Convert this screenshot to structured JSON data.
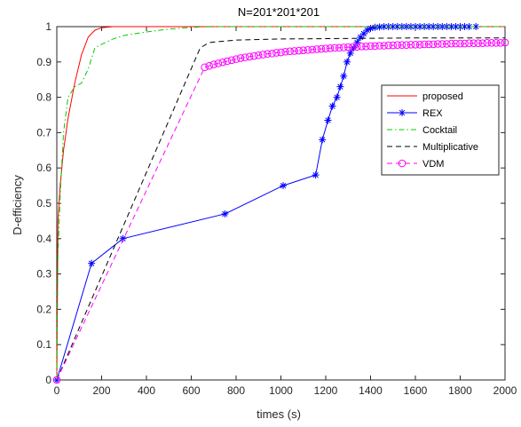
{
  "chart_data": {
    "type": "line",
    "title": "N=201*201*201",
    "xlabel": "times (s)",
    "ylabel": "D-efficiency",
    "xlim": [
      0,
      2000
    ],
    "ylim": [
      0,
      1
    ],
    "xticks": [
      0,
      200,
      400,
      600,
      800,
      1000,
      1200,
      1400,
      1600,
      1800,
      2000
    ],
    "yticks": [
      0,
      0.1,
      0.2,
      0.3,
      0.4,
      0.5,
      0.6,
      0.7,
      0.8,
      0.9,
      1
    ],
    "grid": false,
    "legend": "right",
    "series": [
      {
        "name": "proposed",
        "color": "#ff0000",
        "dash": "solid",
        "marker": "none",
        "x": [
          0,
          5,
          15,
          30,
          50,
          80,
          110,
          140,
          170,
          200,
          250,
          400,
          1000,
          2000
        ],
        "y": [
          0,
          0.45,
          0.55,
          0.65,
          0.74,
          0.84,
          0.92,
          0.97,
          0.99,
          0.997,
          1.0,
          1.0,
          1.0,
          1.0
        ]
      },
      {
        "name": "REX",
        "color": "#0000ff",
        "dash": "solid",
        "marker": "asterisk",
        "x": [
          0,
          155,
          295,
          750,
          1010,
          1155,
          1185,
          1210,
          1230,
          1250,
          1265,
          1280,
          1295,
          1310,
          1325,
          1340,
          1355,
          1370,
          1385,
          1400,
          1420,
          1440,
          1460,
          1480,
          1500,
          1520,
          1540,
          1560,
          1580,
          1600,
          1620,
          1640,
          1660,
          1680,
          1700,
          1720,
          1740,
          1760,
          1780,
          1800,
          1820,
          1840,
          1870
        ],
        "y": [
          0,
          0.33,
          0.4,
          0.47,
          0.55,
          0.58,
          0.68,
          0.735,
          0.775,
          0.8,
          0.83,
          0.86,
          0.9,
          0.925,
          0.94,
          0.955,
          0.97,
          0.98,
          0.99,
          0.995,
          0.998,
          0.999,
          1.0,
          1.0,
          1.0,
          1.0,
          1.0,
          1.0,
          1.0,
          1.0,
          1.0,
          1.0,
          1.0,
          1.0,
          1.0,
          1.0,
          1.0,
          1.0,
          1.0,
          1.0,
          1.0,
          1.0,
          1.0
        ]
      },
      {
        "name": "Cocktail",
        "color": "#00cc00",
        "dash": "dashdot",
        "marker": "none",
        "x": [
          0,
          5,
          15,
          30,
          50,
          80,
          110,
          140,
          170,
          200,
          250,
          300,
          400,
          500,
          600,
          700,
          800,
          1000,
          2000
        ],
        "y": [
          0,
          0.35,
          0.52,
          0.7,
          0.8,
          0.83,
          0.84,
          0.88,
          0.94,
          0.95,
          0.965,
          0.975,
          0.985,
          0.993,
          0.998,
          1.0,
          1.0,
          1.0,
          1.0
        ]
      },
      {
        "name": "Multiplicative",
        "color": "#000000",
        "dash": "dashed",
        "marker": "none",
        "x": [
          0,
          640,
          680,
          800,
          1000,
          1200,
          1400,
          1600,
          2000
        ],
        "y": [
          0,
          0.94,
          0.955,
          0.962,
          0.965,
          0.966,
          0.967,
          0.968,
          0.968
        ]
      },
      {
        "name": "VDM",
        "color": "#ff00ff",
        "dash": "dashed",
        "marker": "circle",
        "x": [
          0,
          660,
          680,
          700,
          720,
          740,
          760,
          780,
          800,
          820,
          840,
          860,
          880,
          900,
          920,
          940,
          960,
          980,
          1000,
          1020,
          1040,
          1060,
          1080,
          1100,
          1120,
          1140,
          1160,
          1180,
          1200,
          1220,
          1240,
          1260,
          1280,
          1300,
          1320,
          1340,
          1360,
          1380,
          1400,
          1420,
          1440,
          1460,
          1480,
          1500,
          1520,
          1540,
          1560,
          1580,
          1600,
          1620,
          1640,
          1660,
          1680,
          1700,
          1720,
          1740,
          1760,
          1780,
          1800,
          1820,
          1840,
          1860,
          1880,
          1900,
          1920,
          1940,
          1960,
          1980,
          2000
        ],
        "y": [
          0,
          0.885,
          0.889,
          0.893,
          0.896,
          0.899,
          0.902,
          0.905,
          0.908,
          0.911,
          0.913,
          0.915,
          0.917,
          0.919,
          0.921,
          0.923,
          0.924,
          0.926,
          0.927,
          0.929,
          0.93,
          0.931,
          0.932,
          0.933,
          0.934,
          0.935,
          0.936,
          0.937,
          0.938,
          0.939,
          0.94,
          0.94,
          0.941,
          0.942,
          0.942,
          0.943,
          0.944,
          0.944,
          0.945,
          0.945,
          0.946,
          0.946,
          0.947,
          0.947,
          0.948,
          0.948,
          0.948,
          0.949,
          0.949,
          0.949,
          0.95,
          0.95,
          0.95,
          0.951,
          0.951,
          0.951,
          0.952,
          0.952,
          0.952,
          0.952,
          0.953,
          0.953,
          0.953,
          0.953,
          0.954,
          0.954,
          0.954,
          0.954,
          0.955
        ]
      }
    ]
  }
}
